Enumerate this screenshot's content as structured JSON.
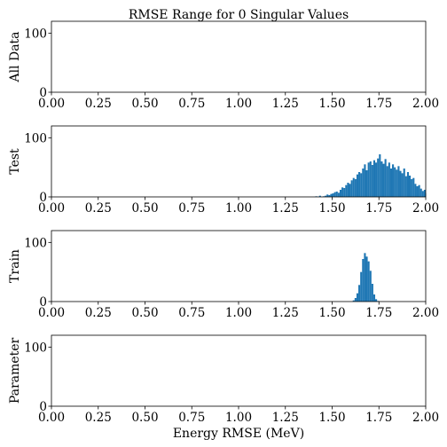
{
  "chart_data": {
    "type": "bar",
    "title": "RMSE Range for 0 Singular Values",
    "xlabel": "Energy RMSE (MeV)",
    "xlim": [
      0,
      2
    ],
    "ylim": [
      0,
      120
    ],
    "x_ticks": [
      "0.00",
      "0.25",
      "0.50",
      "0.75",
      "1.00",
      "1.25",
      "1.50",
      "1.75",
      "2.00"
    ],
    "y_ticks": [
      "0",
      "100"
    ],
    "bar_color": "#1f77b4",
    "bin_width": 0.01,
    "panels": [
      {
        "ylabel": "All Data",
        "bins": []
      },
      {
        "ylabel": "Test",
        "bins": [
          [
            1.41,
            1
          ],
          [
            1.43,
            2
          ],
          [
            1.45,
            1
          ],
          [
            1.46,
            2
          ],
          [
            1.47,
            4
          ],
          [
            1.48,
            3
          ],
          [
            1.49,
            5
          ],
          [
            1.5,
            6
          ],
          [
            1.51,
            8
          ],
          [
            1.52,
            9
          ],
          [
            1.53,
            7
          ],
          [
            1.54,
            12
          ],
          [
            1.55,
            16
          ],
          [
            1.56,
            15
          ],
          [
            1.57,
            20
          ],
          [
            1.58,
            24
          ],
          [
            1.59,
            22
          ],
          [
            1.6,
            28
          ],
          [
            1.61,
            32
          ],
          [
            1.62,
            30
          ],
          [
            1.63,
            38
          ],
          [
            1.64,
            42
          ],
          [
            1.65,
            40
          ],
          [
            1.66,
            48
          ],
          [
            1.67,
            55
          ],
          [
            1.68,
            45
          ],
          [
            1.69,
            58
          ],
          [
            1.7,
            60
          ],
          [
            1.71,
            54
          ],
          [
            1.72,
            62
          ],
          [
            1.73,
            58
          ],
          [
            1.74,
            65
          ],
          [
            1.75,
            72
          ],
          [
            1.76,
            60
          ],
          [
            1.77,
            56
          ],
          [
            1.78,
            64
          ],
          [
            1.79,
            52
          ],
          [
            1.8,
            58
          ],
          [
            1.81,
            48
          ],
          [
            1.82,
            55
          ],
          [
            1.83,
            50
          ],
          [
            1.84,
            46
          ],
          [
            1.85,
            52
          ],
          [
            1.86,
            44
          ],
          [
            1.87,
            40
          ],
          [
            1.88,
            48
          ],
          [
            1.89,
            35
          ],
          [
            1.9,
            42
          ],
          [
            1.91,
            36
          ],
          [
            1.92,
            30
          ],
          [
            1.93,
            32
          ],
          [
            1.94,
            22
          ],
          [
            1.95,
            18
          ],
          [
            1.96,
            20
          ],
          [
            1.97,
            14
          ],
          [
            1.98,
            10
          ],
          [
            1.99,
            12
          ],
          [
            2.0,
            6
          ]
        ]
      },
      {
        "ylabel": "Train",
        "bins": [
          [
            1.61,
            2
          ],
          [
            1.62,
            6
          ],
          [
            1.63,
            14
          ],
          [
            1.64,
            28
          ],
          [
            1.65,
            50
          ],
          [
            1.66,
            72
          ],
          [
            1.67,
            82
          ],
          [
            1.68,
            76
          ],
          [
            1.69,
            68
          ],
          [
            1.7,
            52
          ],
          [
            1.71,
            30
          ],
          [
            1.72,
            12
          ],
          [
            1.73,
            4
          ],
          [
            1.74,
            1
          ]
        ]
      },
      {
        "ylabel": "Parameter",
        "bins": []
      }
    ]
  }
}
